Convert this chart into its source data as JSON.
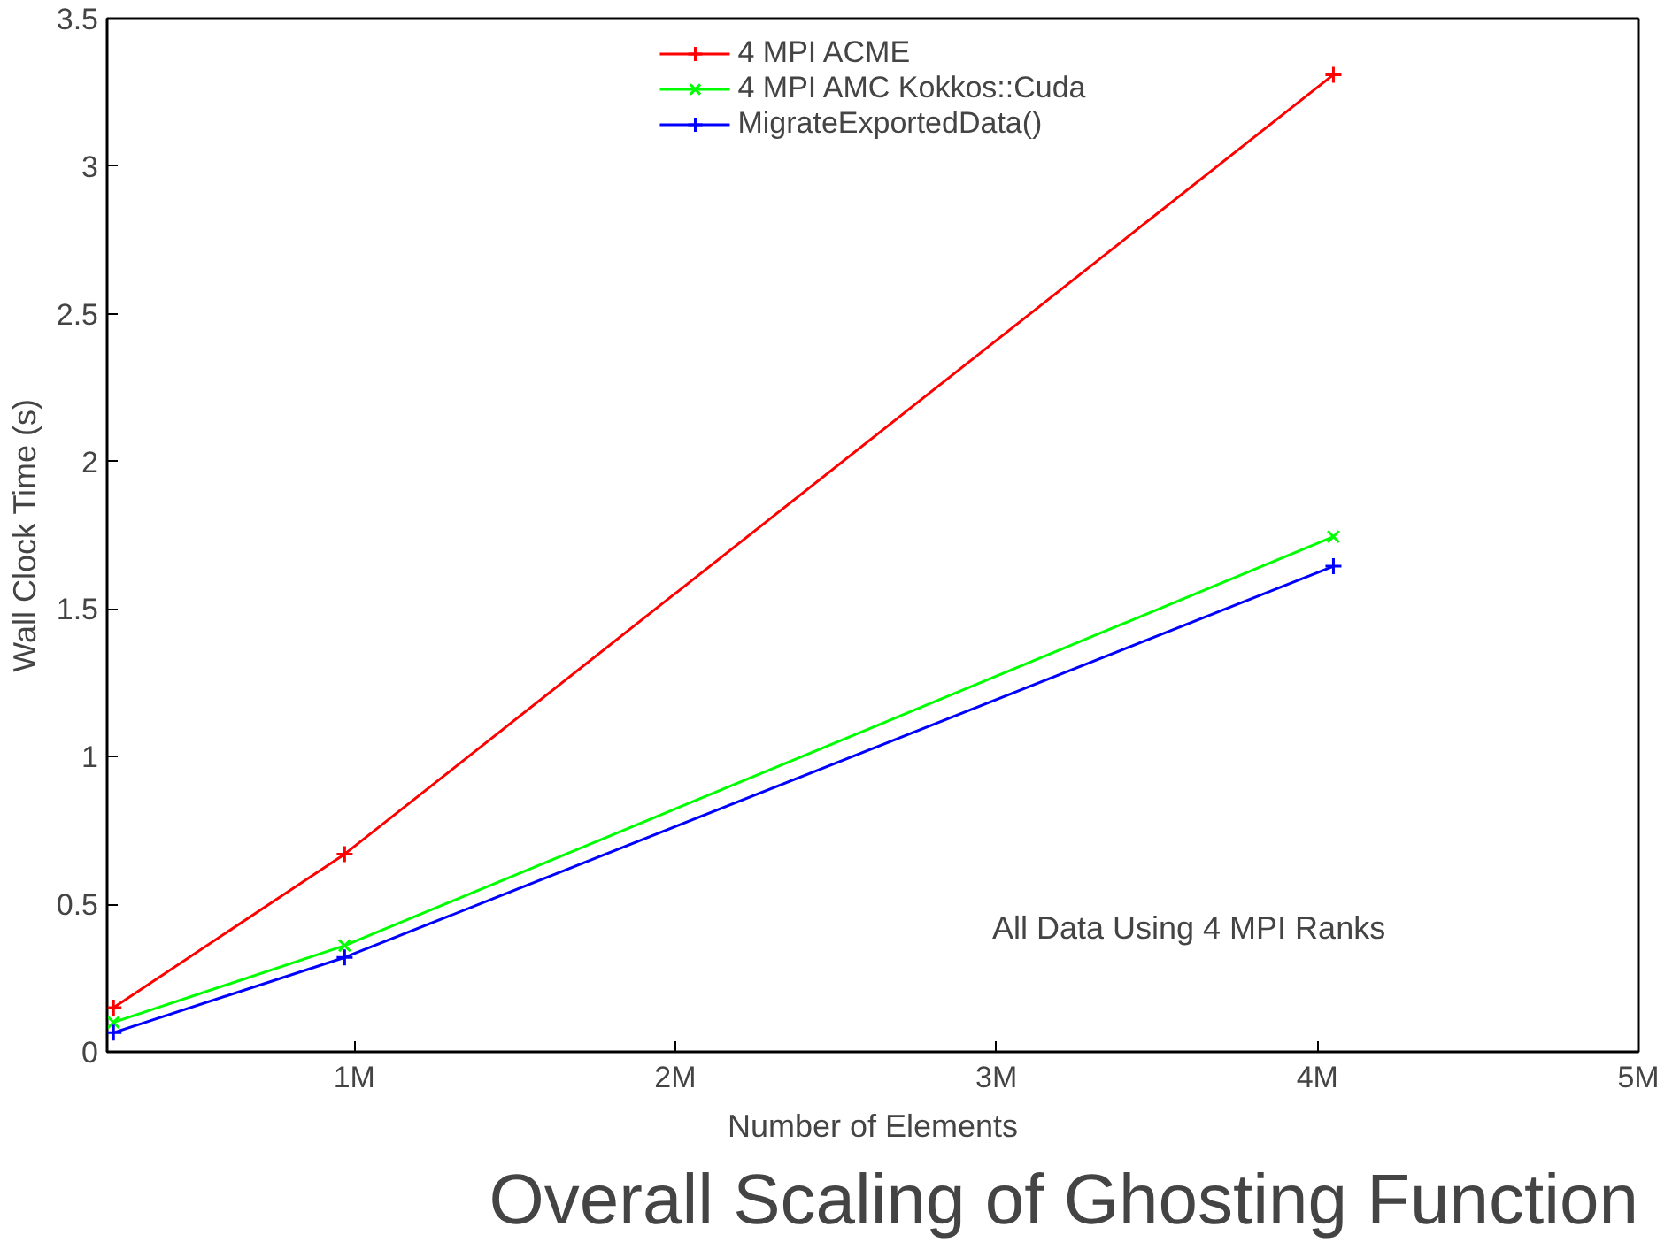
{
  "chart_data": {
    "type": "line",
    "title": "Overall Scaling of Ghosting Function",
    "xlabel": "Number of Elements",
    "ylabel": "Wall Clock Time (s)",
    "x": [
      0.25,
      0.97,
      4.05
    ],
    "series": [
      {
        "name": "4 MPI ACME",
        "color": "#ff0000",
        "marker": "cross",
        "values": [
          0.15,
          0.67,
          3.31
        ]
      },
      {
        "name": "4 MPI AMC Kokkos::Cuda",
        "color": "#00ff00",
        "marker": "x",
        "values": [
          0.1,
          0.36,
          1.745
        ]
      },
      {
        "name": "MigrateExportedData()",
        "color": "#0000ff",
        "marker": "cross",
        "values": [
          0.065,
          0.32,
          1.645
        ]
      }
    ],
    "xlim": [
      0.23,
      5
    ],
    "xticks": [
      {
        "value": 1,
        "label": "1M"
      },
      {
        "value": 2,
        "label": "2M"
      },
      {
        "value": 3,
        "label": "3M"
      },
      {
        "value": 4,
        "label": "4M"
      },
      {
        "value": 5,
        "label": "5M"
      }
    ],
    "ylim": [
      0,
      3.5
    ],
    "yticks": [
      0,
      0.5,
      1,
      1.5,
      2,
      2.5,
      3,
      3.5
    ],
    "grid": false,
    "legend": "top right",
    "line_style": "solid",
    "annotations": [
      "All Data Using 4 MPI Ranks"
    ]
  }
}
